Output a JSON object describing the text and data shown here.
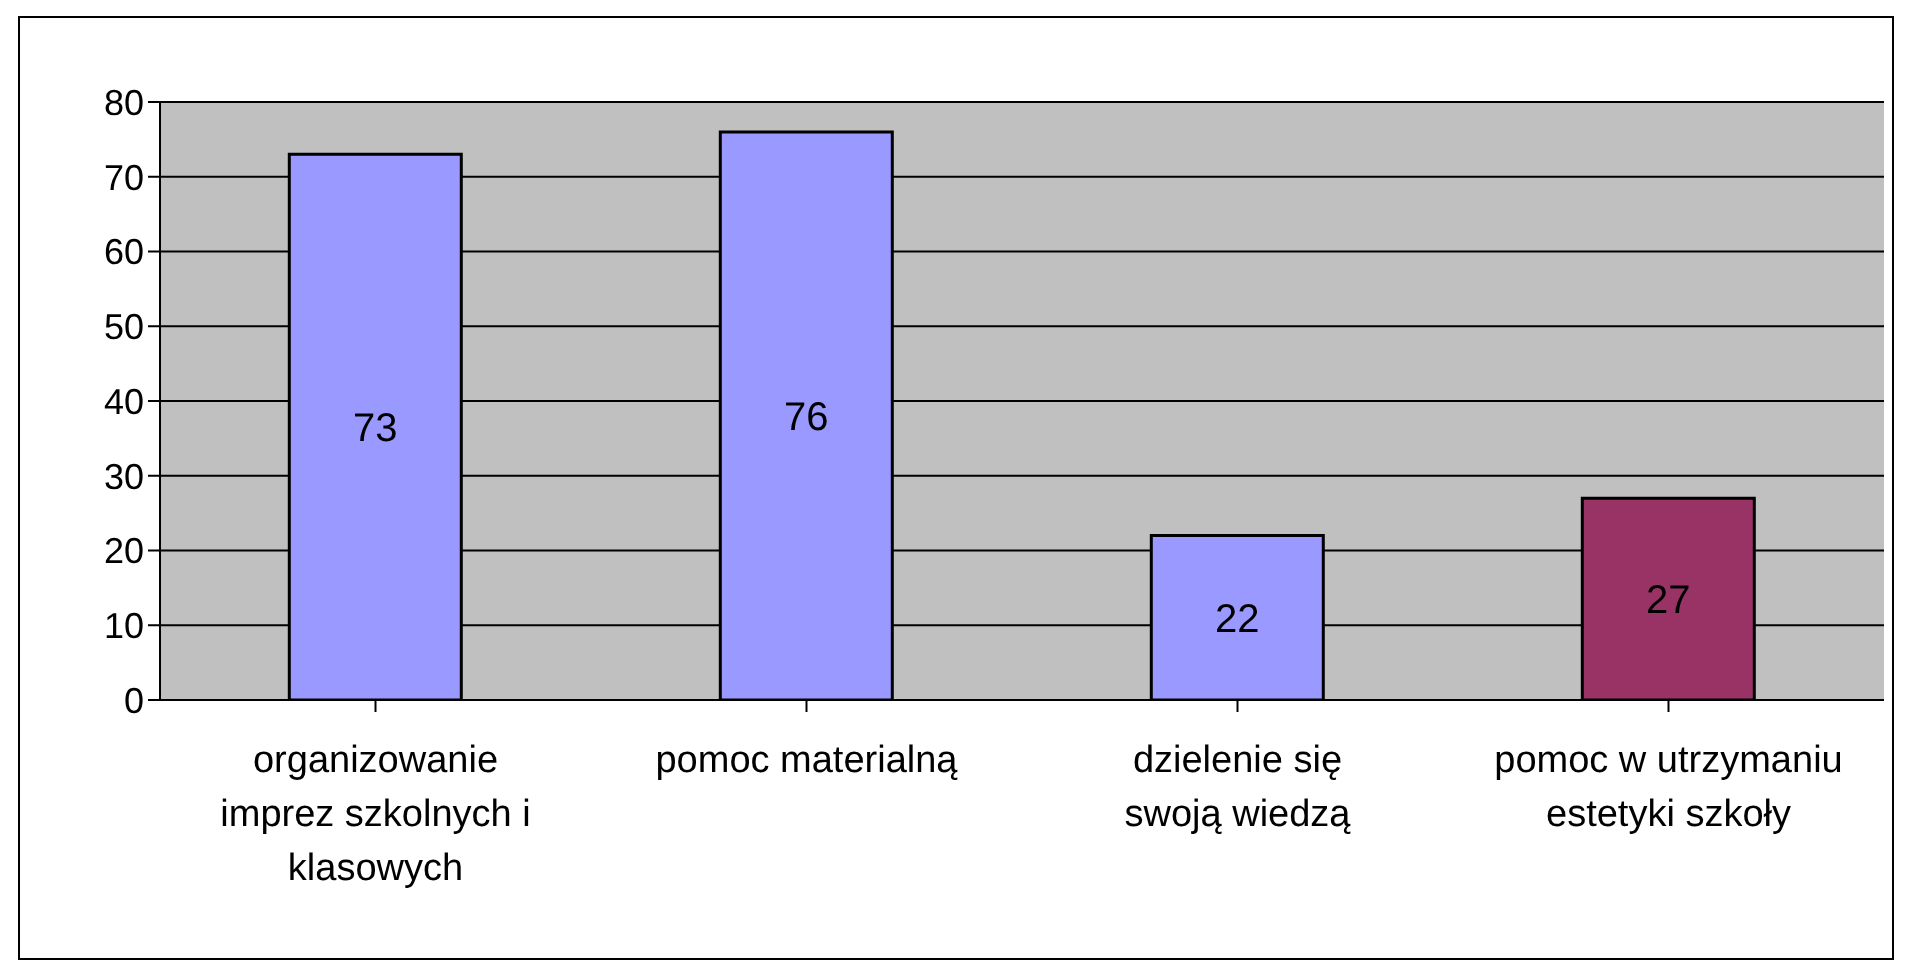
{
  "chart_data": {
    "type": "bar",
    "categories": [
      "organizowanie imprez szkolnych i klasowych",
      "pomoc materialną",
      "dzielenie się swoją wiedzą",
      "pomoc w utrzymaniu estetyki szkoły"
    ],
    "values": [
      73,
      76,
      22,
      27
    ],
    "colors": [
      "#9999ff",
      "#9999ff",
      "#9999ff",
      "#993366"
    ],
    "ylim": [
      0,
      80
    ],
    "yticks": [
      0,
      10,
      20,
      30,
      40,
      50,
      60,
      70,
      80
    ],
    "grid": "y",
    "data_labels": true,
    "legend": false
  }
}
